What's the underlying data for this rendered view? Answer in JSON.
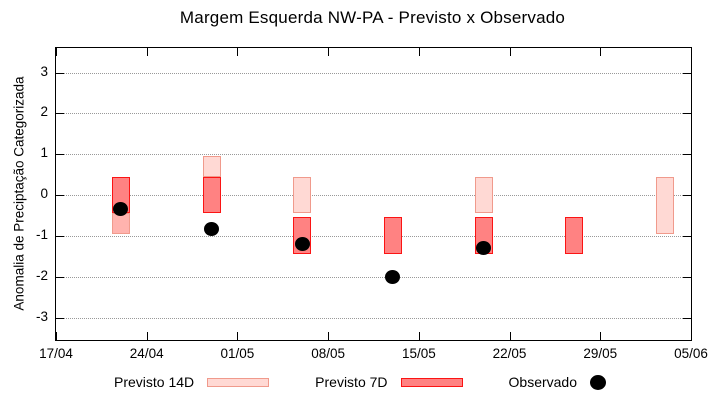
{
  "title": "Margem Esquerda NW-PA - Previsto x Observado",
  "chart_data": {
    "type": "ranged-bar+scatter",
    "title": "Margem Esquerda NW-PA - Previsto x Observado",
    "xlabel": "",
    "ylabel": "Anomalia de Preciptação Categorizada",
    "ylim": [
      -3.55,
      3.6
    ],
    "yticks": [
      3,
      2,
      1,
      0,
      -1,
      -2,
      -3
    ],
    "grid": "horizontal dotted lines at integer y values",
    "legend_position": "bottom",
    "x_span_days": 49,
    "xticks": [
      {
        "day": 0,
        "label": "17/04"
      },
      {
        "day": 7,
        "label": "24/04"
      },
      {
        "day": 14,
        "label": "01/05"
      },
      {
        "day": 21,
        "label": "08/05"
      },
      {
        "day": 28,
        "label": "15/05"
      },
      {
        "day": 35,
        "label": "22/05"
      },
      {
        "day": 42,
        "label": "29/05"
      },
      {
        "day": 49,
        "label": "05/06"
      }
    ],
    "legend": [
      {
        "label": "Previsto 14D",
        "style": "p14"
      },
      {
        "label": "Previsto 7D",
        "style": "p7"
      },
      {
        "label": "Observado",
        "style": "dot"
      }
    ],
    "colors": {
      "p14_fill": "#ffd9d4",
      "p14_border": "#f09a8c",
      "p7_fill": "#ff8282",
      "p7_border": "#fb1414",
      "p14o_fill": "#ffb3ae",
      "p14o_border": "#f09a8c",
      "observed": "#000000",
      "grid": "#999999",
      "frame": "#000000"
    },
    "clusters": [
      {
        "date": "22/04",
        "day": 5,
        "previsto_14d_range": [
          -0.95,
          0.45
        ],
        "previsto_7d_range": [
          -0.45,
          0.45
        ],
        "observado": -0.35,
        "segments": [
          {
            "top": 0.45,
            "bottom": -0.45,
            "style": "p7"
          },
          {
            "top": -0.45,
            "bottom": -0.95,
            "style": "p14o"
          }
        ]
      },
      {
        "date": "29/04",
        "day": 12,
        "previsto_14d_range": [
          0.45,
          0.95
        ],
        "previsto_7d_range": [
          -0.45,
          0.45
        ],
        "observado": -0.82,
        "segments": [
          {
            "top": 0.95,
            "bottom": 0.45,
            "style": "p14"
          },
          {
            "top": 0.45,
            "bottom": -0.45,
            "style": "p7"
          }
        ]
      },
      {
        "date": "06/05",
        "day": 19,
        "previsto_14d_range": [
          -0.45,
          0.45
        ],
        "previsto_7d_range": [
          -1.45,
          -0.55
        ],
        "observado": -1.2,
        "segments": [
          {
            "top": 0.45,
            "bottom": -0.45,
            "style": "p14"
          },
          {
            "top": -0.55,
            "bottom": -1.45,
            "style": "p7"
          }
        ]
      },
      {
        "date": "13/05",
        "day": 26,
        "previsto_7d_range": [
          -1.45,
          -0.55
        ],
        "observado": -2.0,
        "segments": [
          {
            "top": -0.55,
            "bottom": -1.45,
            "style": "p7"
          }
        ]
      },
      {
        "date": "20/05",
        "day": 33,
        "previsto_14d_range": [
          -0.45,
          0.45
        ],
        "previsto_7d_range": [
          -1.45,
          -0.55
        ],
        "observado": -1.3,
        "segments": [
          {
            "top": 0.45,
            "bottom": -0.45,
            "style": "p14"
          },
          {
            "top": -0.55,
            "bottom": -1.45,
            "style": "p7"
          }
        ]
      },
      {
        "date": "27/05",
        "day": 40,
        "previsto_7d_range": [
          -1.45,
          -0.55
        ],
        "segments": [
          {
            "top": -0.55,
            "bottom": -1.45,
            "style": "p7"
          }
        ]
      },
      {
        "date": "03/06",
        "day": 47,
        "previsto_14d_range": [
          -0.95,
          0.45
        ],
        "segments": [
          {
            "top": 0.45,
            "bottom": -0.95,
            "style": "p14"
          }
        ]
      }
    ]
  }
}
